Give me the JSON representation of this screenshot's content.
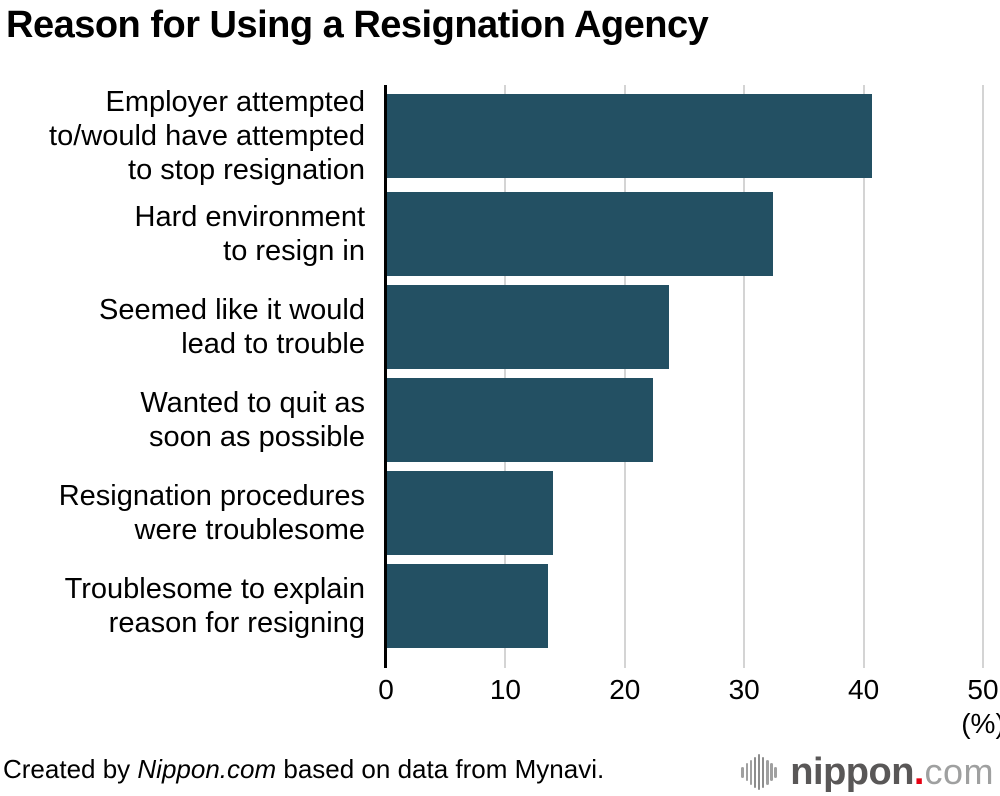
{
  "title": "Reason for Using a Resignation Agency",
  "chart_data": {
    "type": "bar",
    "orientation": "horizontal",
    "title": "Reason for Using a Resignation Agency",
    "categories": [
      "Employer attempted\nto/would have attempted\nto stop resignation",
      "Hard environment\nto resign in",
      "Seemed like it would\nlead to trouble",
      "Wanted to quit as\nsoon as possible",
      "Resignation procedures\nwere troublesome",
      "Troublesome to explain\nreason for resigning"
    ],
    "values": [
      40.7,
      32.4,
      23.7,
      22.4,
      14.0,
      13.6
    ],
    "x_ticks": [
      0,
      10,
      20,
      30,
      40,
      50
    ],
    "xlim": [
      0,
      50
    ],
    "unit_label": "(%)",
    "grid": true,
    "bar_color": "#235063",
    "gridline_color": "#d4d4d4"
  },
  "footer": {
    "credit": {
      "prefix": "Created by ",
      "source": "Nippon.com",
      "suffix": " based on data from Mynavi."
    },
    "logo": {
      "icon": "soundwave-icon",
      "word": "nippon",
      "dot": ".",
      "tld": "com",
      "dot_color": "#e60012"
    }
  }
}
